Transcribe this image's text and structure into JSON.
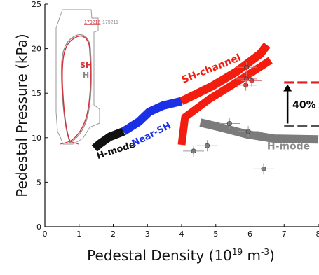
{
  "chart_data": {
    "type": "line",
    "xlabel": "Pedestal Density (10¹⁹ m⁻³)",
    "xlabel_parts": {
      "prefix": "Pedestal Density (10",
      "exp1": "19",
      "middle": " m",
      "exp2": "-3",
      "suffix": ")"
    },
    "ylabel": "Pedestal Pressure (kPa)",
    "xlim": [
      0,
      8
    ],
    "ylim": [
      0,
      25
    ],
    "x_ticks": [
      0,
      1,
      2,
      3,
      4,
      5,
      6,
      7,
      8
    ],
    "y_ticks": [
      0,
      5,
      10,
      15,
      20,
      25
    ],
    "grid": false,
    "series": [
      {
        "name": "H-mode",
        "color": "#111111",
        "points": [
          [
            1.45,
            8.8
          ],
          [
            1.6,
            9.3
          ],
          [
            1.9,
            10.1
          ],
          [
            2.3,
            10.7
          ]
        ]
      },
      {
        "name": "Near-SH",
        "color": "#1a2fe6",
        "points": [
          [
            2.3,
            10.7
          ],
          [
            2.75,
            11.8
          ],
          [
            3.05,
            12.9
          ],
          [
            3.45,
            13.6
          ],
          [
            4.0,
            14.1
          ]
        ]
      },
      {
        "name": "SH-channel",
        "color": "#f21d0f",
        "points": [
          [
            4.0,
            14.1
          ],
          [
            4.9,
            15.8
          ],
          [
            5.6,
            17.4
          ],
          [
            6.3,
            19.4
          ],
          [
            6.5,
            20.4
          ]
        ]
      },
      {
        "name": "SH-channel (lower branch)",
        "color": "#f21d0f",
        "points": [
          [
            4.0,
            9.2
          ],
          [
            4.1,
            12.3
          ],
          [
            4.8,
            14.3
          ],
          [
            5.6,
            16.2
          ],
          [
            6.6,
            18.7
          ]
        ]
      },
      {
        "name": "H-mode (high density)",
        "color": "#7b7b7b",
        "points": [
          [
            4.55,
            11.7
          ],
          [
            5.1,
            11.2
          ],
          [
            5.9,
            10.4
          ],
          [
            6.7,
            9.9
          ],
          [
            8.0,
            9.8
          ]
        ]
      }
    ],
    "data_points": [
      {
        "x": 5.9,
        "y": 17.9,
        "color": "#d23030"
      },
      {
        "x": 5.9,
        "y": 16.6,
        "color": "#d23030"
      },
      {
        "x": 6.05,
        "y": 16.4,
        "color": "#d23030"
      },
      {
        "x": 5.88,
        "y": 15.9,
        "color": "#d23030"
      },
      {
        "x": 5.4,
        "y": 11.6,
        "color": "#707070"
      },
      {
        "x": 5.95,
        "y": 10.7,
        "color": "#707070"
      },
      {
        "x": 4.75,
        "y": 9.1,
        "color": "#707070"
      },
      {
        "x": 4.35,
        "y": 8.5,
        "color": "#707070"
      },
      {
        "x": 6.4,
        "y": 6.5,
        "color": "#707070"
      }
    ],
    "reference_levels": [
      {
        "y": 16.2,
        "x_start": 7.0,
        "color": "#e02020"
      },
      {
        "y": 11.3,
        "x_start": 7.0,
        "color": "#555555"
      }
    ],
    "annotation_arrow": {
      "x": 7.1,
      "y_from": 11.6,
      "y_to": 16.0,
      "label": "40%"
    },
    "curve_labels": {
      "h_mode": "H-mode",
      "near_sh": "Near-SH",
      "sh_channel": "SH-channel",
      "h_mode_right": "H-mode"
    },
    "inset": {
      "shot_red": "179216",
      "shot_gray": "179211",
      "label_sh": "SH",
      "label_h": "H"
    }
  }
}
